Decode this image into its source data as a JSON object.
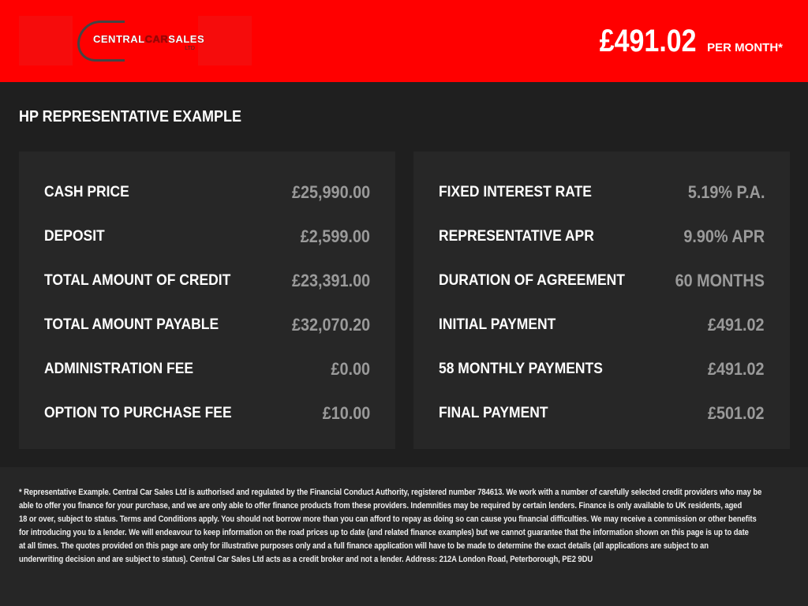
{
  "header": {
    "logo_text": "CENTRAL CAR SALES LTD",
    "price": "£491.02",
    "price_label": "PER MONTH*",
    "accent": "#ff0000"
  },
  "title": "HP REPRESENTATIVE EXAMPLE",
  "left": [
    {
      "label": "CASH PRICE",
      "value": "£25,990.00"
    },
    {
      "label": "DEPOSIT",
      "value": "£2,599.00"
    },
    {
      "label": "TOTAL AMOUNT OF CREDIT",
      "value": "£23,391.00"
    },
    {
      "label": "TOTAL AMOUNT PAYABLE",
      "value": "£32,070.20"
    },
    {
      "label": "ADMINISTRATION FEE",
      "value": "£0.00"
    },
    {
      "label": "OPTION TO PURCHASE FEE",
      "value": "£10.00"
    }
  ],
  "right": [
    {
      "label": "FIXED INTEREST RATE",
      "value": "5.19% P.A."
    },
    {
      "label": "REPRESENTATIVE APR",
      "value": "9.90% APR"
    },
    {
      "label": "DURATION OF AGREEMENT",
      "value": "60 MONTHS"
    },
    {
      "label": "INITIAL PAYMENT",
      "value": "£491.02"
    },
    {
      "label": "58 MONTHLY PAYMENTS",
      "value": "£491.02"
    },
    {
      "label": "FINAL PAYMENT",
      "value": "£501.02"
    }
  ],
  "footer": [
    "* Representative Example. Central Car Sales Ltd is authorised and regulated by the Financial Conduct Authority, registered number 784613. We work with a number of carefully selected credit providers who may be",
    "able to offer you finance for your purchase, and we are only able to offer finance products from these providers. Indemnities may be required by certain lenders. Finance is only available to UK residents, aged",
    "18 or over, subject to status. Terms and Conditions apply. You should not borrow more than you can afford to repay as doing so can cause you financial difficulties. We may receive a commission or other benefits",
    "for introducing you to a lender. We will endeavour to keep information on the road prices up to date (and related finance examples) but we cannot guarantee that the information shown on this page is up to date",
    "at all times. The quotes provided on this page are only for illustrative purposes only and a full finance application will have to be made to determine the exact details (all applications are subject to an",
    "underwriting decision and are subject to status). Central Car Sales Ltd acts as a credit broker and not a lender. Address: 212A London Road, Peterborough, PE2 9DU"
  ]
}
